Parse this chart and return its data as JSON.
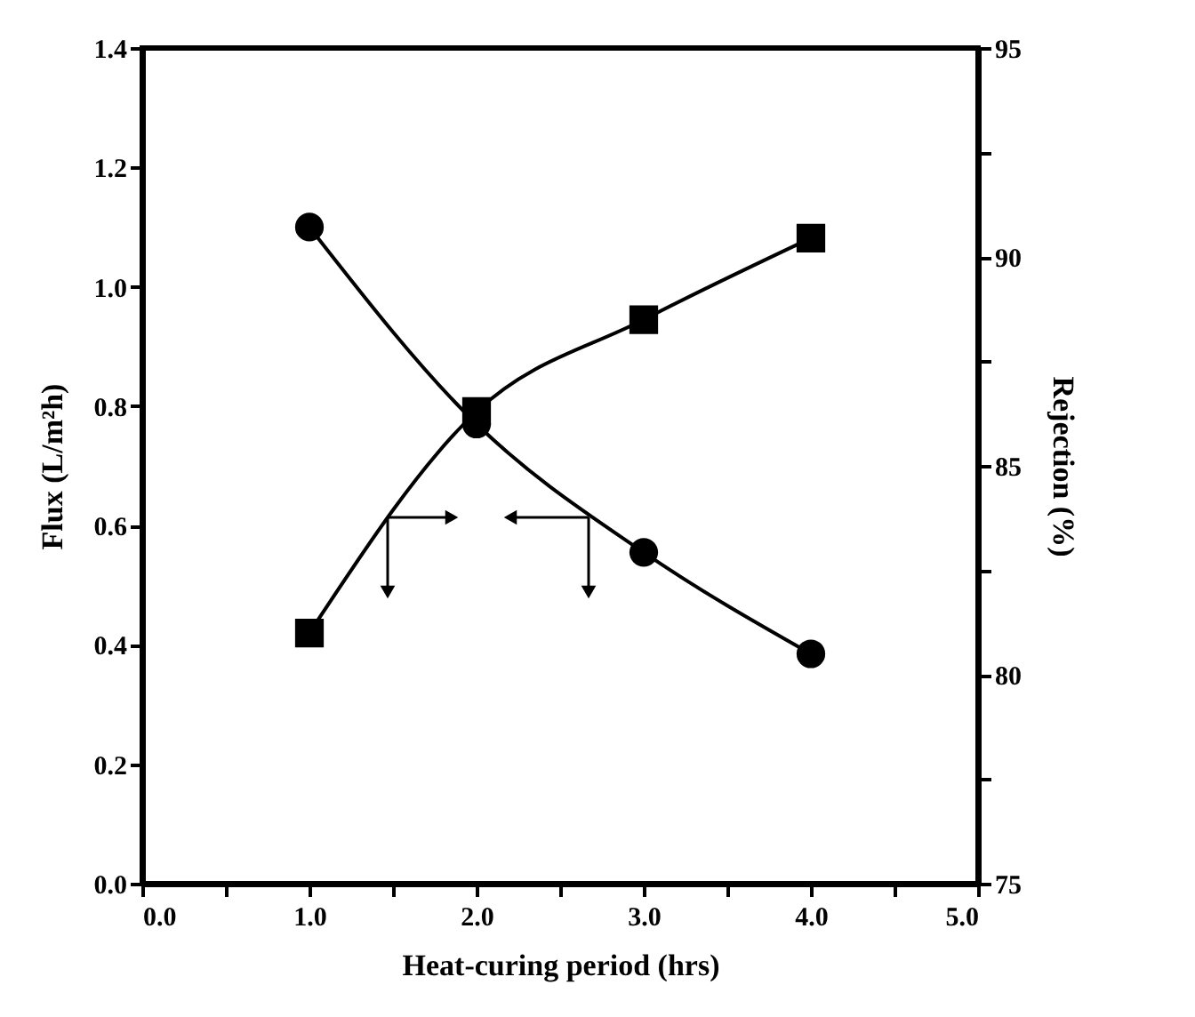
{
  "chart_data": {
    "type": "line",
    "xlabel": "Heat-curing period (hrs)",
    "ylabel": "Flux (L/m²h)",
    "y2label": "Rejection (%)",
    "x": [
      1.0,
      2.0,
      3.0,
      4.0
    ],
    "series": [
      {
        "color": "#000000",
        "marker": "circle",
        "values": [
          1.1,
          0.77,
          0.555,
          0.385
        ]
      },
      {
        "color": "#000000",
        "marker": "square",
        "axis": "y2",
        "values": [
          81.0,
          86.3,
          88.5,
          90.45
        ]
      }
    ],
    "xlim": [
      0,
      5
    ],
    "xticks": [
      {
        "value": 0,
        "label": "0.0"
      },
      {
        "value": 0.5,
        "label": null
      },
      {
        "value": 1,
        "label": "1.0"
      },
      {
        "value": 1.5,
        "label": null
      },
      {
        "value": 2,
        "label": "2.0"
      },
      {
        "value": 2.5,
        "label": null
      },
      {
        "value": 3,
        "label": "3.0"
      },
      {
        "value": 3.5,
        "label": null
      },
      {
        "value": 4,
        "label": "4.0"
      },
      {
        "value": 4.5,
        "label": null
      },
      {
        "value": 5,
        "label": "5.0"
      }
    ],
    "ylim": [
      0,
      1.4
    ],
    "yticks": [
      {
        "value": 0,
        "label": "0.0"
      },
      {
        "value": 0.2,
        "label": "0.2"
      },
      {
        "value": 0.4,
        "label": "0.4"
      },
      {
        "value": 0.6,
        "label": "0.6"
      },
      {
        "value": 0.8,
        "label": "0.8"
      },
      {
        "value": 1.0,
        "label": "1.0"
      },
      {
        "value": 1.2,
        "label": "1.2"
      },
      {
        "value": 1.4,
        "label": "1.4"
      }
    ],
    "y2lim": [
      75,
      95
    ],
    "y2ticks": [
      75,
      {
        "value": 77.5,
        "label": null
      },
      80,
      {
        "value": 82.5,
        "label": null
      },
      85,
      {
        "value": 87.5,
        "label": null
      },
      90,
      {
        "value": 92.5,
        "label": null
      },
      95
    ],
    "line_style": "solid"
  }
}
